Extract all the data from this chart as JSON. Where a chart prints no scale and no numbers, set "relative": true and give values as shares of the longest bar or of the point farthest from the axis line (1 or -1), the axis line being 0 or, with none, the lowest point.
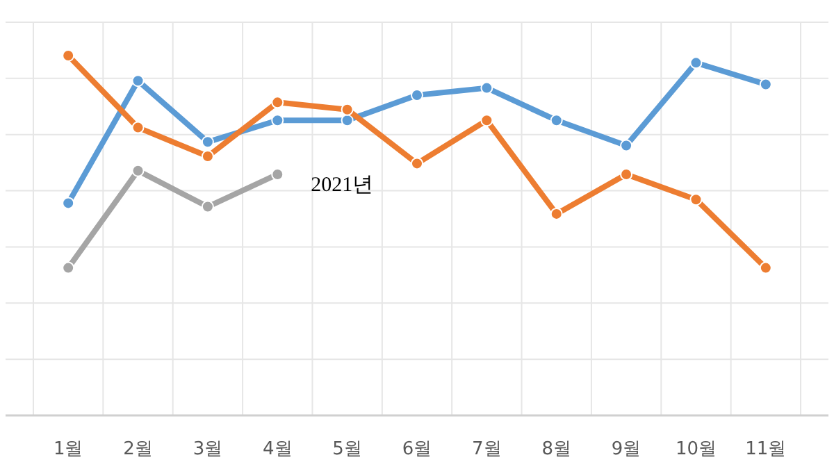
{
  "chart_data": {
    "type": "line",
    "relative": true,
    "grid": true,
    "marker": "circle",
    "line_style": "solid",
    "categories": [
      "1월",
      "2월",
      "3월",
      "4월",
      "5월",
      "6월",
      "7월",
      "8월",
      "9월",
      "10월",
      "11월"
    ],
    "series": [
      {
        "color": "#5b9bd5",
        "values": [
          0.59,
          0.93,
          0.76,
          0.82,
          0.82,
          0.89,
          0.91,
          0.82,
          0.75,
          0.98,
          0.92
        ]
      },
      {
        "color": "#ed7d31",
        "values": [
          1,
          0.8,
          0.72,
          0.87,
          0.85,
          0.7,
          0.82,
          0.56,
          0.67,
          0.6,
          0.41
        ]
      },
      {
        "name": "2021년",
        "color": "#a5a5a5",
        "values": [
          0.41,
          0.68,
          0.58,
          0.67,
          null,
          null,
          null,
          null,
          null,
          null,
          null
        ]
      }
    ]
  }
}
